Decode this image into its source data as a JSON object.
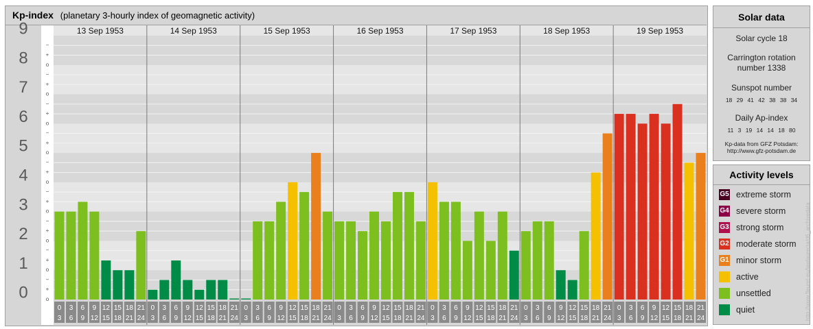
{
  "header": {
    "title": "Kp-index",
    "subtitle": "(planetary 3-hourly index of geomagnetic activity)"
  },
  "chart_data": {
    "type": "bar",
    "ylim": [
      0,
      9
    ],
    "y_ticks": [
      "0",
      "1",
      "2",
      "3",
      "4",
      "5",
      "6",
      "7",
      "8",
      "9"
    ],
    "y_minor_marks": [
      "o",
      "+",
      "−"
    ],
    "days": [
      "13 Sep 1953",
      "14 Sep 1953",
      "15 Sep 1953",
      "16 Sep 1953",
      "17 Sep 1953",
      "18 Sep 1953",
      "19 Sep 1953"
    ],
    "x_slot_labels": [
      [
        "0",
        "3"
      ],
      [
        "3",
        "6"
      ],
      [
        "6",
        "9"
      ],
      [
        "9",
        "12"
      ],
      [
        "12",
        "15"
      ],
      [
        "15",
        "18"
      ],
      [
        "18",
        "21"
      ],
      [
        "21",
        "24"
      ]
    ],
    "values": [
      [
        3.0,
        3.0,
        3.333,
        3.0,
        1.333,
        1.0,
        1.0,
        2.333
      ],
      [
        0.333,
        0.667,
        1.333,
        0.667,
        0.333,
        0.667,
        0.667,
        0.0
      ],
      [
        0.0,
        2.667,
        2.667,
        3.333,
        4.0,
        3.667,
        5.0,
        3.0
      ],
      [
        2.667,
        2.667,
        2.333,
        3.0,
        2.667,
        3.667,
        3.667,
        2.667
      ],
      [
        4.0,
        3.333,
        3.333,
        2.0,
        3.0,
        2.0,
        3.0,
        1.667
      ],
      [
        2.333,
        2.667,
        2.667,
        1.0,
        0.667,
        2.333,
        4.333,
        5.667
      ],
      [
        6.333,
        6.333,
        6.0,
        6.333,
        6.0,
        6.667,
        4.667,
        5.0
      ]
    ],
    "level_colors": {
      "quiet": "#008c46",
      "unsettled": "#7dbf1e",
      "active": "#f5c000",
      "G1": "#ea7f1e",
      "G2": "#d93020",
      "G3": "#b0104e",
      "G4": "#8c0046",
      "G5": "#4a0020"
    }
  },
  "solar": {
    "title": "Solar data",
    "cycle": "Solar cycle 18",
    "carrington": "Carrington rotation number 1338",
    "sunspot_title": "Sunspot number",
    "sunspots": "18 29 41 42 38 38 34",
    "ap_title": "Daily Ap-index",
    "ap": "11 3 19 14 14 18 80",
    "source_line1": "Kp-data from GFZ Potsdam:",
    "source_line2": "http://www.gfz-potsdam.de"
  },
  "activity": {
    "title": "Activity levels",
    "levels": [
      {
        "code": "G5",
        "label": "extreme storm",
        "color": "#4a0020"
      },
      {
        "code": "G4",
        "label": "severe storm",
        "color": "#8c0046"
      },
      {
        "code": "G3",
        "label": "strong storm",
        "color": "#b0104e"
      },
      {
        "code": "G2",
        "label": "moderate storm",
        "color": "#d93020"
      },
      {
        "code": "G1",
        "label": "minor storm",
        "color": "#ea7f1e"
      },
      {
        "code": "",
        "label": "active",
        "color": "#f5c000"
      },
      {
        "code": "",
        "label": "unsettled",
        "color": "#7dbf1e"
      },
      {
        "code": "",
        "label": "quiet",
        "color": "#008c46"
      }
    ]
  },
  "watermark": "http://www.fleuret-eu/lawlaurecta/d6_archivedata"
}
